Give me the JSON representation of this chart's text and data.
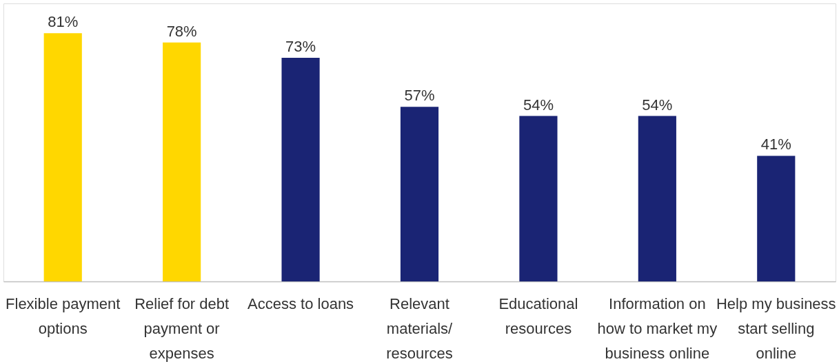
{
  "chart_data": {
    "type": "bar",
    "categories": [
      "Flexible payment options",
      "Relief for debt payment or expenses",
      "Access to loans",
      "Relevant materials/ resources",
      "Educational resources",
      "Information on how to market my business online",
      "Help my business start selling online"
    ],
    "values": [
      81,
      78,
      73,
      57,
      54,
      54,
      41
    ],
    "colors": [
      "#ffd700",
      "#ffd700",
      "#1a2474",
      "#1a2474",
      "#1a2474",
      "#1a2474",
      "#1a2474"
    ],
    "value_labels": [
      "81%",
      "78%",
      "73%",
      "57%",
      "54%",
      "54%",
      "41%"
    ]
  }
}
